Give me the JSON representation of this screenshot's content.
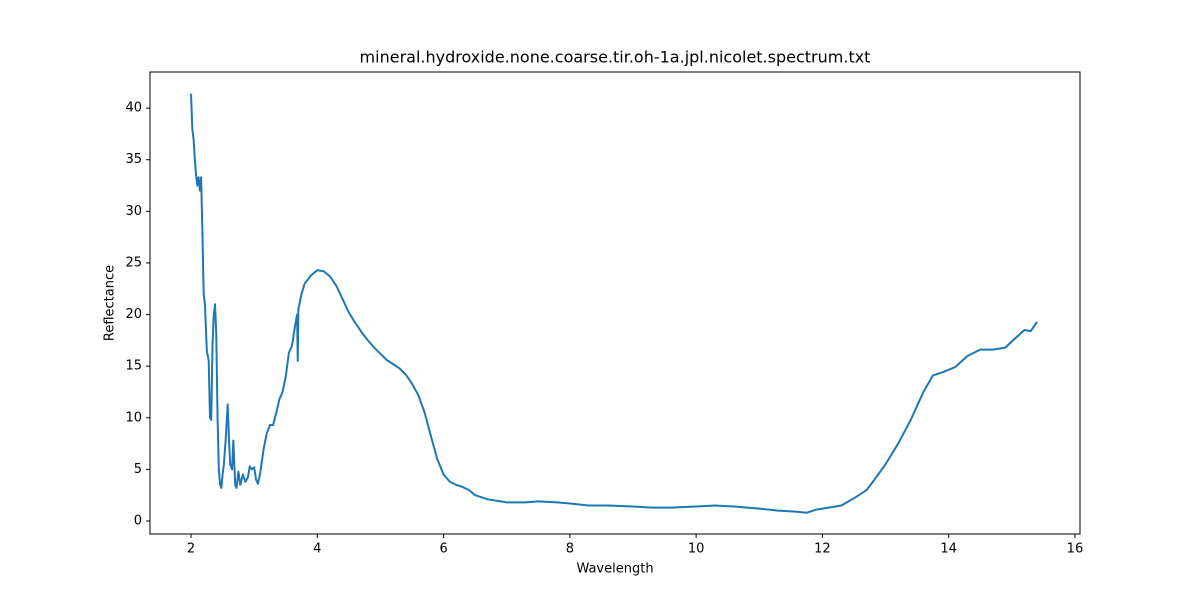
{
  "chart_data": {
    "type": "line",
    "title": "mineral.hydroxide.none.coarse.tir.oh-1a.jpl.nicolet.spectrum.txt",
    "x_label": "Wavelength",
    "y_label": "Reflectance",
    "color": "#1f77b4",
    "xlim": [
      1.35,
      16.08
    ],
    "ylim": [
      -1.26,
      43.5
    ],
    "xticks": [
      2,
      4,
      6,
      8,
      10,
      12,
      14,
      16
    ],
    "yticks": [
      0,
      5,
      10,
      15,
      20,
      25,
      30,
      35,
      40
    ],
    "x": [
      2.0,
      2.02,
      2.04,
      2.06,
      2.08,
      2.1,
      2.12,
      2.14,
      2.16,
      2.18,
      2.2,
      2.22,
      2.25,
      2.28,
      2.3,
      2.32,
      2.34,
      2.36,
      2.38,
      2.4,
      2.42,
      2.44,
      2.46,
      2.48,
      2.5,
      2.52,
      2.55,
      2.58,
      2.6,
      2.62,
      2.65,
      2.67,
      2.7,
      2.72,
      2.75,
      2.78,
      2.82,
      2.86,
      2.9,
      2.93,
      2.96,
      3.0,
      3.03,
      3.06,
      3.1,
      3.15,
      3.2,
      3.25,
      3.3,
      3.35,
      3.4,
      3.45,
      3.5,
      3.55,
      3.6,
      3.65,
      3.68,
      3.69,
      3.7,
      3.75,
      3.8,
      3.9,
      4.0,
      4.1,
      4.2,
      4.3,
      4.4,
      4.5,
      4.6,
      4.7,
      4.8,
      4.9,
      5.0,
      5.1,
      5.2,
      5.3,
      5.4,
      5.5,
      5.6,
      5.7,
      5.8,
      5.9,
      6.0,
      6.1,
      6.2,
      6.3,
      6.4,
      6.5,
      6.7,
      7.0,
      7.3,
      7.5,
      7.8,
      8.0,
      8.3,
      8.6,
      9.0,
      9.3,
      9.6,
      10.0,
      10.3,
      10.6,
      11.0,
      11.3,
      11.6,
      11.75,
      11.9,
      12.1,
      12.3,
      12.5,
      12.7,
      12.8,
      13.0,
      13.2,
      13.4,
      13.6,
      13.75,
      13.9,
      14.1,
      14.3,
      14.5,
      14.7,
      14.9,
      15.0,
      15.2,
      15.3,
      15.4
    ],
    "values": [
      41.4,
      38,
      37,
      35,
      33.5,
      32.5,
      33.3,
      32,
      33.3,
      28,
      22,
      21,
      16.5,
      15.5,
      10,
      9.8,
      17,
      20,
      21,
      18,
      10,
      5,
      3.5,
      3.2,
      4.5,
      5.5,
      8,
      11.3,
      8,
      5.5,
      5,
      7.8,
      3.5,
      3.2,
      4.8,
      3.5,
      4.5,
      3.8,
      4.2,
      5.3,
      5,
      5.2,
      4,
      3.6,
      4.8,
      7,
      8.5,
      9.3,
      9.3,
      10.5,
      11.8,
      12.5,
      14,
      16.3,
      17,
      19,
      20,
      15.5,
      20.5,
      22,
      23,
      23.8,
      24.3,
      24.2,
      23.7,
      22.8,
      21.5,
      20.2,
      19.2,
      18.3,
      17.5,
      16.8,
      16.2,
      15.6,
      15.2,
      14.8,
      14.2,
      13.3,
      12.2,
      10.5,
      8.2,
      6,
      4.5,
      3.8,
      3.5,
      3.3,
      3,
      2.5,
      2.1,
      1.8,
      1.8,
      1.9,
      1.8,
      1.7,
      1.5,
      1.5,
      1.4,
      1.3,
      1.3,
      1.4,
      1.5,
      1.4,
      1.2,
      1.0,
      0.9,
      0.8,
      1.1,
      1.3,
      1.5,
      2.2,
      3,
      3.8,
      5.5,
      7.5,
      9.8,
      12.5,
      14.1,
      14.4,
      14.9,
      16,
      16.6,
      16.6,
      16.8,
      17.4,
      18.5,
      18.4,
      19.3
    ]
  }
}
